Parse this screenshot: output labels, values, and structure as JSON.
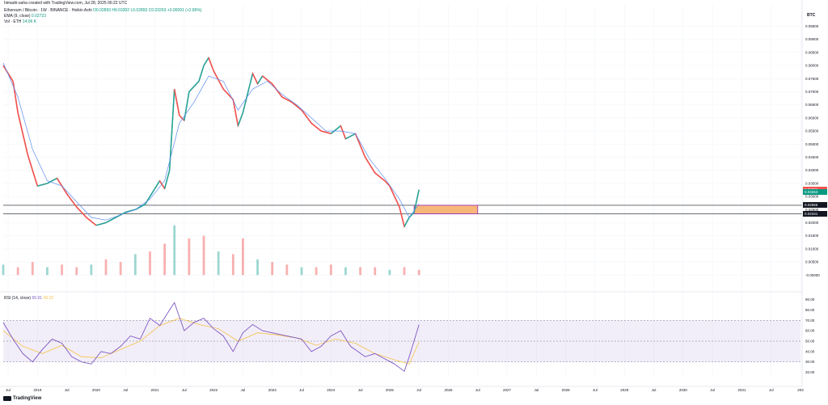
{
  "header": {
    "credit": "himadri-saha created with TradingView.com, Jul 28, 2025 06:22 UTC",
    "pair": "Ethereum / Bitcoin · 1W · BINANCE · Heikin Ashi",
    "ohlc": "O0.02893 H0.03302 L0.02893 C0.03263 +0.00091 (+2.86%)",
    "ema_label": "EMA (9, close)",
    "ema_value": "0.02723",
    "vol_label": "Vol · ETH",
    "vol_value": "14.06 K",
    "rsi_label": "RSI (14, close)",
    "rsi_value": "65.91",
    "rsi_ma_value": "49.23"
  },
  "currency": "BTC",
  "logo_text": "TradingView",
  "colors": {
    "up": "#26a69a",
    "down": "#ef5350",
    "ema": "#5b8def",
    "rsi": "#7e57c2",
    "rsi_ma": "#f5c24a",
    "zone": "#f7b77a",
    "zone_border": "#9c27b0"
  },
  "badges": [
    {
      "text": "0.03282",
      "bg": "#ef5350",
      "price": 0.0328
    },
    {
      "text": "0.03263",
      "bg": "#089981",
      "price": 0.0318
    },
    {
      "text": "0.02665",
      "bg": "#131722",
      "price": 0.02665
    },
    {
      "text": "0.02341",
      "bg": "#131722",
      "price": 0.02341
    }
  ],
  "chart_data": {
    "type": "line",
    "price_axis": {
      "min": -0.003,
      "max": 0.097,
      "ticks": [
        "0.09500",
        "0.09000",
        "0.08500",
        "0.08000",
        "0.07500",
        "0.07000",
        "0.06500",
        "0.06000",
        "0.05500",
        "0.05000",
        "0.04500",
        "0.04000",
        "0.03500",
        "0.03000",
        "0.02500",
        "0.02000",
        "0.01500",
        "0.01000",
        "0.00500",
        "-0.00000"
      ]
    },
    "rsi_axis": {
      "min": 15,
      "max": 92,
      "ticks": [
        "90.00",
        "80.00",
        "70.00",
        "60.00",
        "50.00",
        "40.00",
        "30.00",
        "20.00"
      ],
      "bands": [
        70,
        50,
        30
      ]
    },
    "time_ticks": [
      "Jul",
      "2019",
      "Jul",
      "2020",
      "Jul",
      "2021",
      "Jul",
      "2022",
      "Jul",
      "2023",
      "Jul",
      "2024",
      "Jul",
      "2025",
      "Jul",
      "2026",
      "Jul",
      "2027",
      "Jul",
      "2028",
      "Jul",
      "2029",
      "Jul",
      "2030",
      "Jul",
      "2031",
      "Jul",
      "203"
    ],
    "time_range": [
      "2018-06",
      "2032-01"
    ],
    "horizontal_levels": [
      0.02665,
      0.02341
    ],
    "support_zone": {
      "from": "2025-06",
      "to": "2026-07",
      "top": 0.02665,
      "bottom": 0.02341
    },
    "price_series": [
      [
        "2018-06",
        0.08
      ],
      [
        "2018-08",
        0.074
      ],
      [
        "2018-09",
        0.062
      ],
      [
        "2018-11",
        0.046
      ],
      [
        "2019-01",
        0.034
      ],
      [
        "2019-03",
        0.035
      ],
      [
        "2019-05",
        0.037
      ],
      [
        "2019-07",
        0.031
      ],
      [
        "2019-09",
        0.026
      ],
      [
        "2019-11",
        0.022
      ],
      [
        "2020-01",
        0.019
      ],
      [
        "2020-03",
        0.02
      ],
      [
        "2020-05",
        0.022
      ],
      [
        "2020-07",
        0.024
      ],
      [
        "2020-09",
        0.025
      ],
      [
        "2020-11",
        0.027
      ],
      [
        "2021-01",
        0.033
      ],
      [
        "2021-02",
        0.036
      ],
      [
        "2021-03",
        0.033
      ],
      [
        "2021-04",
        0.04
      ],
      [
        "2021-05",
        0.071
      ],
      [
        "2021-06",
        0.061
      ],
      [
        "2021-07",
        0.059
      ],
      [
        "2021-08",
        0.07
      ],
      [
        "2021-10",
        0.074
      ],
      [
        "2021-11",
        0.08
      ],
      [
        "2021-12",
        0.083
      ],
      [
        "2022-01",
        0.078
      ],
      [
        "2022-03",
        0.071
      ],
      [
        "2022-05",
        0.067
      ],
      [
        "2022-06",
        0.057
      ],
      [
        "2022-07",
        0.062
      ],
      [
        "2022-09",
        0.077
      ],
      [
        "2022-10",
        0.073
      ],
      [
        "2022-11",
        0.076
      ],
      [
        "2023-01",
        0.073
      ],
      [
        "2023-03",
        0.068
      ],
      [
        "2023-05",
        0.066
      ],
      [
        "2023-07",
        0.063
      ],
      [
        "2023-09",
        0.058
      ],
      [
        "2023-11",
        0.055
      ],
      [
        "2024-01",
        0.054
      ],
      [
        "2024-03",
        0.057
      ],
      [
        "2024-04",
        0.052
      ],
      [
        "2024-06",
        0.054
      ],
      [
        "2024-08",
        0.045
      ],
      [
        "2024-10",
        0.039
      ],
      [
        "2024-12",
        0.036
      ],
      [
        "2025-01",
        0.034
      ],
      [
        "2025-03",
        0.026
      ],
      [
        "2025-04",
        0.0185
      ],
      [
        "2025-05",
        0.022
      ],
      [
        "2025-06",
        0.024
      ],
      [
        "2025-07",
        0.0326
      ]
    ],
    "ema_series": [
      [
        "2018-06",
        0.081
      ],
      [
        "2018-09",
        0.068
      ],
      [
        "2018-12",
        0.048
      ],
      [
        "2019-03",
        0.036
      ],
      [
        "2019-06",
        0.034
      ],
      [
        "2019-09",
        0.028
      ],
      [
        "2019-12",
        0.022
      ],
      [
        "2020-03",
        0.021
      ],
      [
        "2020-06",
        0.023
      ],
      [
        "2020-09",
        0.025
      ],
      [
        "2020-12",
        0.029
      ],
      [
        "2021-03",
        0.036
      ],
      [
        "2021-06",
        0.058
      ],
      [
        "2021-09",
        0.066
      ],
      [
        "2021-12",
        0.076
      ],
      [
        "2022-03",
        0.074
      ],
      [
        "2022-06",
        0.063
      ],
      [
        "2022-09",
        0.071
      ],
      [
        "2022-12",
        0.074
      ],
      [
        "2023-03",
        0.069
      ],
      [
        "2023-06",
        0.065
      ],
      [
        "2023-09",
        0.06
      ],
      [
        "2023-12",
        0.055
      ],
      [
        "2024-03",
        0.055
      ],
      [
        "2024-06",
        0.054
      ],
      [
        "2024-09",
        0.044
      ],
      [
        "2024-12",
        0.037
      ],
      [
        "2025-03",
        0.029
      ],
      [
        "2025-05",
        0.022
      ],
      [
        "2025-07",
        0.0272
      ]
    ],
    "volume_series": [
      [
        "2018-06",
        0.004
      ],
      [
        "2018-09",
        0.003
      ],
      [
        "2018-12",
        0.005
      ],
      [
        "2019-03",
        0.003
      ],
      [
        "2019-06",
        0.004
      ],
      [
        "2019-09",
        0.003
      ],
      [
        "2019-12",
        0.004
      ],
      [
        "2020-03",
        0.006
      ],
      [
        "2020-06",
        0.005
      ],
      [
        "2020-09",
        0.008
      ],
      [
        "2020-12",
        0.009
      ],
      [
        "2021-03",
        0.012
      ],
      [
        "2021-05",
        0.019
      ],
      [
        "2021-08",
        0.014
      ],
      [
        "2021-11",
        0.015
      ],
      [
        "2022-02",
        0.009
      ],
      [
        "2022-05",
        0.008
      ],
      [
        "2022-07",
        0.014
      ],
      [
        "2022-10",
        0.006
      ],
      [
        "2023-01",
        0.005
      ],
      [
        "2023-04",
        0.004
      ],
      [
        "2023-07",
        0.003
      ],
      [
        "2023-10",
        0.003
      ],
      [
        "2024-01",
        0.004
      ],
      [
        "2024-04",
        0.003
      ],
      [
        "2024-07",
        0.003
      ],
      [
        "2024-10",
        0.003
      ],
      [
        "2025-01",
        0.002
      ],
      [
        "2025-04",
        0.003
      ],
      [
        "2025-07",
        0.002
      ]
    ],
    "rsi_series": [
      [
        "2018-06",
        68
      ],
      [
        "2018-08",
        52
      ],
      [
        "2018-10",
        38
      ],
      [
        "2018-12",
        30
      ],
      [
        "2019-02",
        42
      ],
      [
        "2019-04",
        52
      ],
      [
        "2019-06",
        48
      ],
      [
        "2019-08",
        35
      ],
      [
        "2019-10",
        30
      ],
      [
        "2019-12",
        28
      ],
      [
        "2020-02",
        40
      ],
      [
        "2020-04",
        38
      ],
      [
        "2020-06",
        45
      ],
      [
        "2020-08",
        55
      ],
      [
        "2020-10",
        52
      ],
      [
        "2020-12",
        72
      ],
      [
        "2021-02",
        65
      ],
      [
        "2021-04",
        80
      ],
      [
        "2021-05",
        87
      ],
      [
        "2021-07",
        60
      ],
      [
        "2021-09",
        68
      ],
      [
        "2021-11",
        72
      ],
      [
        "2022-01",
        62
      ],
      [
        "2022-03",
        55
      ],
      [
        "2022-05",
        40
      ],
      [
        "2022-07",
        58
      ],
      [
        "2022-09",
        66
      ],
      [
        "2022-11",
        60
      ],
      [
        "2023-01",
        58
      ],
      [
        "2023-04",
        55
      ],
      [
        "2023-07",
        52
      ],
      [
        "2023-09",
        40
      ],
      [
        "2023-11",
        45
      ],
      [
        "2024-01",
        55
      ],
      [
        "2024-03",
        60
      ],
      [
        "2024-05",
        45
      ],
      [
        "2024-08",
        35
      ],
      [
        "2024-10",
        38
      ],
      [
        "2024-12",
        33
      ],
      [
        "2025-02",
        28
      ],
      [
        "2025-04",
        21
      ],
      [
        "2025-05",
        35
      ],
      [
        "2025-07",
        65.9
      ]
    ],
    "rsi_ma_series": [
      [
        "2018-06",
        60
      ],
      [
        "2018-10",
        45
      ],
      [
        "2019-02",
        38
      ],
      [
        "2019-06",
        46
      ],
      [
        "2019-10",
        35
      ],
      [
        "2020-02",
        34
      ],
      [
        "2020-06",
        42
      ],
      [
        "2020-10",
        50
      ],
      [
        "2021-02",
        65
      ],
      [
        "2021-06",
        72
      ],
      [
        "2021-10",
        66
      ],
      [
        "2022-02",
        62
      ],
      [
        "2022-06",
        50
      ],
      [
        "2022-10",
        58
      ],
      [
        "2023-02",
        56
      ],
      [
        "2023-06",
        53
      ],
      [
        "2023-10",
        46
      ],
      [
        "2024-02",
        52
      ],
      [
        "2024-06",
        48
      ],
      [
        "2024-10",
        38
      ],
      [
        "2025-02",
        32
      ],
      [
        "2025-05",
        28
      ],
      [
        "2025-07",
        49.2
      ]
    ]
  }
}
